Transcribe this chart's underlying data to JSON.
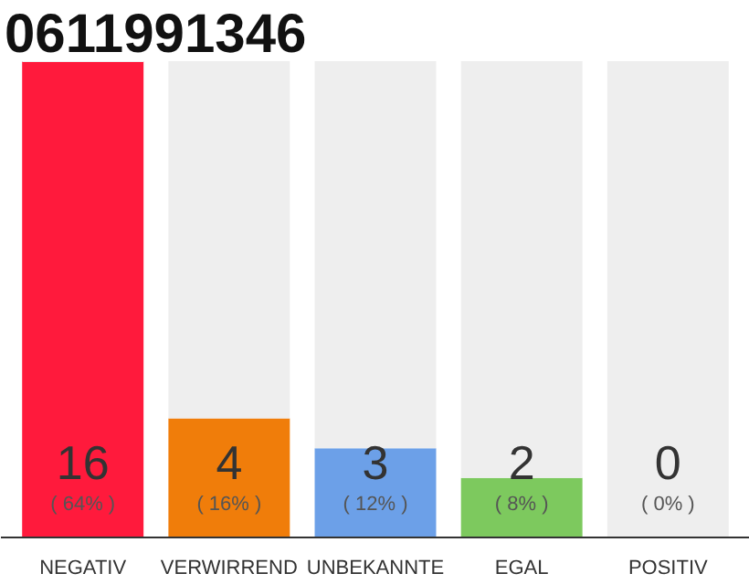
{
  "chart_data": {
    "type": "bar",
    "title": "0611991346",
    "stacked": true,
    "categories": [
      "NEGATIV",
      "VERWIRREND",
      "UNBEKANNTE",
      "EGAL",
      "POSITIV"
    ],
    "series": [
      {
        "colors": [
          "#ff1a3c",
          "#f07d0a",
          "#6ca0e8",
          "#7dc95e",
          "#c8c8c8"
        ],
        "values": [
          16,
          4,
          3,
          2,
          0
        ],
        "value_labels": [
          "16\n( 64% )",
          "4\n( 16% )",
          "3\n( 12% )",
          "2\n( 8% )",
          "0\n( 0% )"
        ]
      },
      {
        "color": "#eeeeee",
        "values": [
          0,
          12,
          13,
          14,
          16
        ]
      }
    ],
    "grid": false
  }
}
